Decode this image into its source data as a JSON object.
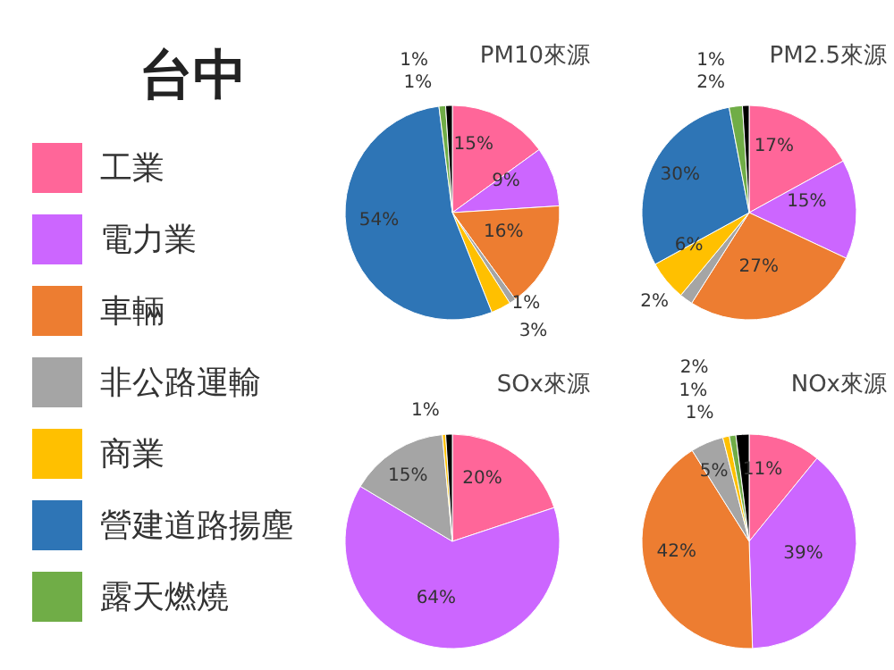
{
  "chart_data": [
    {
      "type": "pie",
      "title": "PM10來源",
      "annotations": [
        "台中"
      ],
      "legend": "left",
      "categories": [
        "工業",
        "電力業",
        "車輛",
        "非公路運輸",
        "商業",
        "營建道路揚塵",
        "露天燃燒",
        null
      ],
      "values": [
        15,
        9,
        16,
        1,
        3,
        54,
        1,
        1
      ],
      "value_labels": [
        "15%",
        "9%",
        "16%",
        "1%",
        "3%",
        "54%",
        "1%",
        "1%"
      ],
      "colors": [
        "#ff6699",
        "#cc66ff",
        "#ed7d31",
        "#a5a5a5",
        "#ffc000",
        "#2e75b6",
        "#70ad47",
        "#000000"
      ]
    },
    {
      "type": "pie",
      "title": "PM2.5來源",
      "values": [
        17,
        15,
        27,
        2,
        6,
        30,
        2,
        1
      ],
      "value_labels": [
        "17%",
        "15%",
        "27%",
        "2%",
        "6%",
        "30%",
        "2%",
        "1%"
      ],
      "colors": [
        "#ff6699",
        "#cc66ff",
        "#ed7d31",
        "#a5a5a5",
        "#ffc000",
        "#2e75b6",
        "#70ad47",
        "#000000"
      ]
    },
    {
      "type": "pie",
      "title": "SOx來源",
      "values": [
        20,
        64,
        0,
        15,
        0.5,
        0,
        0,
        1
      ],
      "value_labels": [
        "20%",
        "64%",
        null,
        "15%",
        null,
        null,
        null,
        "1%"
      ],
      "colors": [
        "#ff6699",
        "#cc66ff",
        "#ed7d31",
        "#a5a5a5",
        "#ffc000",
        "#2e75b6",
        "#70ad47",
        "#000000"
      ]
    },
    {
      "type": "pie",
      "title": "NOx來源",
      "values": [
        11,
        39,
        42,
        5,
        1,
        0,
        1,
        2
      ],
      "value_labels": [
        "11%",
        "39%",
        "42%",
        "5%",
        "1%",
        null,
        "1%",
        "2%"
      ],
      "colors": [
        "#ff6699",
        "#cc66ff",
        "#ed7d31",
        "#a5a5a5",
        "#ffc000",
        "#2e75b6",
        "#70ad47",
        "#000000"
      ]
    }
  ]
}
